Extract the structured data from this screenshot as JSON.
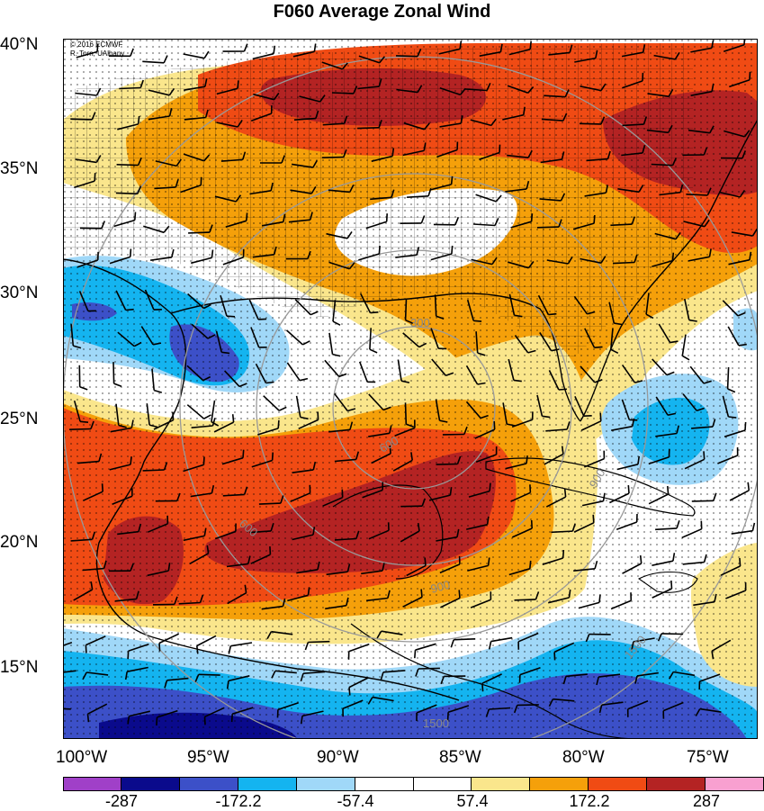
{
  "title": "F060 Average Zonal Wind",
  "credit": {
    "line1": "© 2016 ECMWF",
    "line2": "R. Torn, UAlbany"
  },
  "lat_labels": [
    "40°N",
    "35°N",
    "30°N",
    "25°N",
    "20°N",
    "15°N"
  ],
  "lon_labels": [
    "100°W",
    "95°W",
    "90°W",
    "85°W",
    "80°W",
    "75°W"
  ],
  "range_ring_labels": [
    "300",
    "600",
    "900",
    "1500"
  ],
  "colorbar": {
    "colors": [
      "#a040c8",
      "#0a0a8c",
      "#3c50c8",
      "#14b4f0",
      "#a0d8f8",
      "#ffffff",
      "#ffffff",
      "#fae68c",
      "#f5a00a",
      "#f04b14",
      "#b42323",
      "#f8a0d0"
    ],
    "labels": [
      "-287",
      "-172.2",
      "-57.4",
      "57.4",
      "172.2",
      "287"
    ]
  },
  "chart_data": {
    "type": "heatmap",
    "title": "F060 Average Zonal Wind",
    "x_range": [
      "100°W",
      "73°W"
    ],
    "y_range": [
      "12°N",
      "40°N"
    ],
    "colorbar_levels": [
      -287,
      -172.2,
      -57.4,
      57.4,
      172.2,
      287
    ],
    "range_rings": [
      "300",
      "600",
      "900",
      "1500"
    ]
  }
}
